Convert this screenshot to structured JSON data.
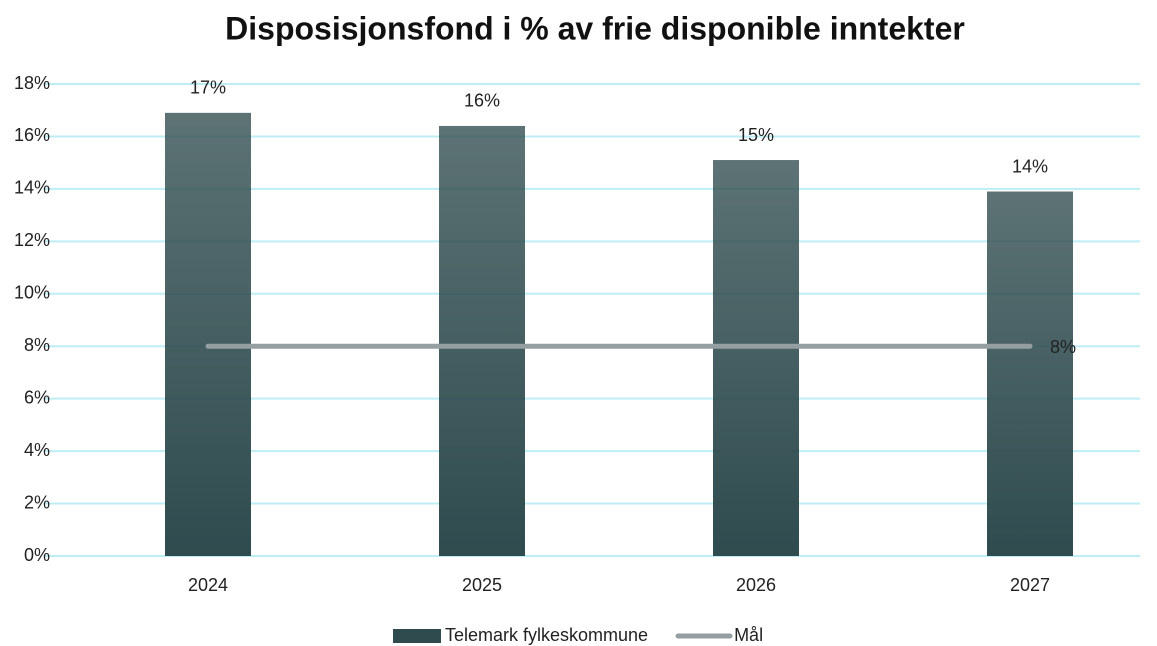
{
  "chart_data": {
    "type": "bar",
    "title": "Disposisjonsfond i % av frie disponible inntekter",
    "categories": [
      "2024",
      "2025",
      "2026",
      "2027"
    ],
    "series": [
      {
        "name": "Telemark fylkeskommune",
        "type": "bar",
        "color": "#2f4b4e",
        "values": [
          16.9,
          16.4,
          15.1,
          13.9
        ],
        "value_labels": [
          "17%",
          "16%",
          "15%",
          "14%"
        ]
      },
      {
        "name": "Mål",
        "type": "line",
        "color": "#959ea0",
        "values": [
          8,
          8,
          8,
          8
        ],
        "value_labels": [
          null,
          null,
          null,
          "8%"
        ]
      }
    ],
    "ylim": [
      0,
      18
    ],
    "yticks": [
      {
        "value": 0,
        "label": "0%"
      },
      {
        "value": 2,
        "label": "2%"
      },
      {
        "value": 4,
        "label": "4%"
      },
      {
        "value": 6,
        "label": "6%"
      },
      {
        "value": 8,
        "label": "8%"
      },
      {
        "value": 10,
        "label": "10%"
      },
      {
        "value": 12,
        "label": "12%"
      },
      {
        "value": 14,
        "label": "14%"
      },
      {
        "value": 16,
        "label": "16%"
      },
      {
        "value": 18,
        "label": "18%"
      }
    ],
    "grid": true,
    "grid_color": "#bdeef5",
    "legend": "bottom"
  }
}
